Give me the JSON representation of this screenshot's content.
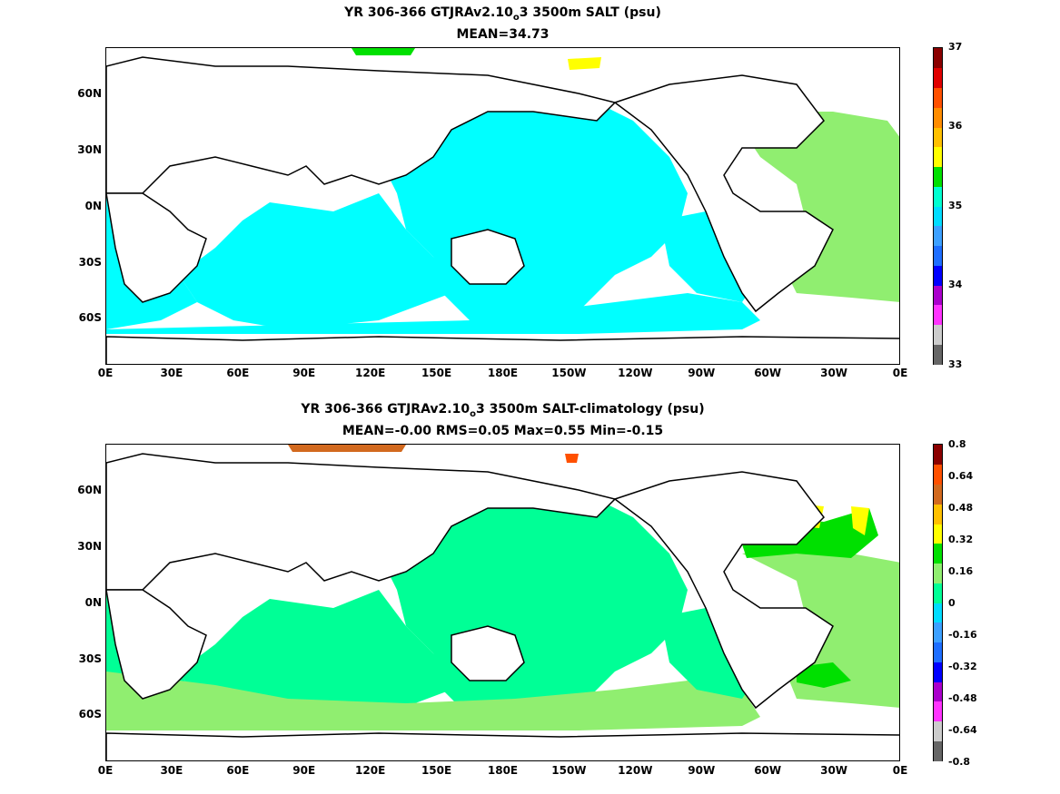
{
  "panel1": {
    "title_pre": "YR 306-366 GTJRAv2.10",
    "title_sub": "o",
    "title_post": "3 3500m SALT (psu)",
    "subtitle": "MEAN=34.73",
    "colorbar": {
      "labels": [
        "37",
        "36",
        "35",
        "34",
        "33"
      ],
      "colors": [
        "#666666",
        "#cccccc",
        "#ff33ff",
        "#aa00cc",
        "#0000ff",
        "#1e6eff",
        "#3ca0ff",
        "#00dcff",
        "#00ffd0",
        "#00e000",
        "#ffff00",
        "#ffc000",
        "#ff8c00",
        "#ff5000",
        "#e00000",
        "#8b0000"
      ]
    }
  },
  "panel2": {
    "title_pre": "YR 306-366 GTJRAv2.10",
    "title_sub": "o",
    "title_post": "3 3500m SALT-climatology (psu)",
    "subtitle": "MEAN=-0.00   RMS=0.05   Max=0.55   Min=-0.15",
    "colorbar": {
      "labels": [
        "0.8",
        "0.64",
        "0.48",
        "0.32",
        "0.16",
        "0",
        "-0.16",
        "-0.32",
        "-0.48",
        "-0.64",
        "-0.8"
      ],
      "colors": [
        "#666666",
        "#cccccc",
        "#ff33ff",
        "#aa00cc",
        "#0000ff",
        "#1e6eff",
        "#3ca0ff",
        "#00dcff",
        "#00ff96",
        "#90ee70",
        "#00e000",
        "#ffff00",
        "#ffc000",
        "#d2691e",
        "#ff5000",
        "#8b0000"
      ]
    }
  },
  "axes": {
    "lat_labels": [
      "60N",
      "30N",
      "0N",
      "30S",
      "60S"
    ],
    "lon_labels": [
      "0E",
      "30E",
      "60E",
      "90E",
      "120E",
      "150E",
      "180E",
      "150W",
      "120W",
      "90W",
      "60W",
      "30W",
      "0E"
    ]
  },
  "colors": {
    "land": "#ffffff",
    "coast": "#000000",
    "p1_main": "#00ffff",
    "p1_atlantic": "#90ee70",
    "p1_green": "#00e000",
    "p1_yellow": "#ffff00",
    "p2_main": "#00ff96",
    "p2_light": "#90ee70",
    "p2_green": "#00e000",
    "p2_yellow": "#ffff00",
    "p2_orange": "#d2691e",
    "p2_red": "#ff5000"
  }
}
